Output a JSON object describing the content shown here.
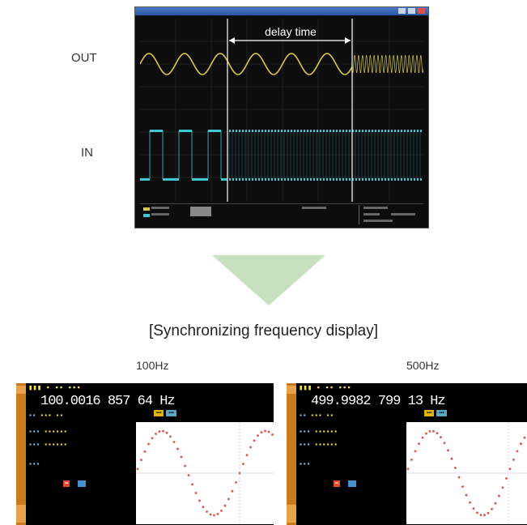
{
  "labels": {
    "out": "OUT",
    "in": "IN"
  },
  "scope": {
    "delay_label": "delay time"
  },
  "heading": "[Synchronizing frequency display]",
  "left_panel": {
    "caption": "100Hz",
    "frequency": "100.0016 857 64 Hz"
  },
  "right_panel": {
    "caption": "500Hz",
    "frequency": "499.9982 799 13 Hz"
  },
  "colors": {
    "out_wave": "#d8c84a",
    "in_wave": "#3fc7d6",
    "arrow": "#c7e0bf",
    "plot_dots": "#e0524a",
    "panel_accent": "#c87a1c"
  }
}
